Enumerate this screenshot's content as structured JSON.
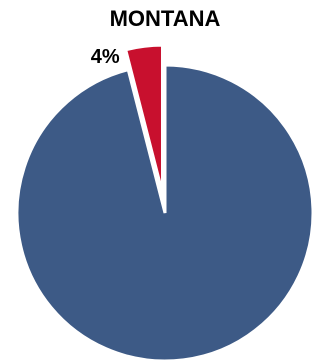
{
  "chart_data": {
    "type": "pie",
    "title": "MONTANA",
    "values": [
      96,
      4
    ],
    "value_labels": [
      null,
      "4%"
    ],
    "colors": [
      "#3d5a86",
      "#c8102e"
    ],
    "explode": [
      false,
      true
    ]
  }
}
